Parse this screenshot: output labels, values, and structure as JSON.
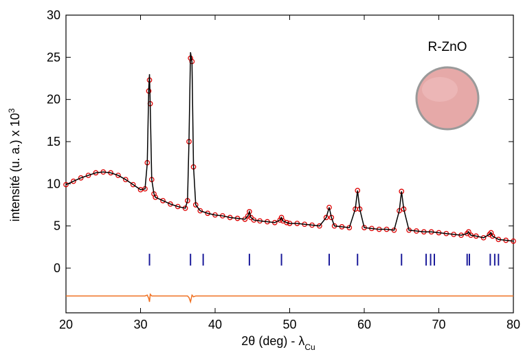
{
  "chart_data": {
    "type": "xrd",
    "x_label": "2θ (deg) - λ",
    "x_label_sub": "Cu",
    "y_label": "intensité (u. a.) x 10",
    "y_label_sup": "3",
    "annotation": "R-ZnO",
    "xlim": [
      20,
      80
    ],
    "ylim": [
      -5.3,
      30
    ],
    "xticks": [
      20,
      30,
      40,
      50,
      60,
      70,
      80
    ],
    "yticks": [
      0,
      5,
      10,
      15,
      20,
      25,
      30
    ],
    "x": [
      20,
      21,
      22,
      23,
      24,
      25,
      26,
      27,
      28,
      29,
      30,
      30.6,
      30.9,
      31.1,
      31.2,
      31.3,
      31.5,
      31.8,
      32,
      33,
      34,
      35,
      36,
      36.3,
      36.5,
      36.7,
      36.9,
      37.1,
      37.4,
      38,
      39,
      40,
      41,
      42,
      43,
      44,
      44.4,
      44.6,
      44.8,
      45.2,
      46,
      47,
      48,
      48.7,
      48.9,
      49.1,
      49.6,
      50,
      51,
      52,
      53,
      54,
      54.9,
      55.3,
      55.6,
      56,
      57,
      58,
      58.8,
      59.1,
      59.4,
      60,
      61,
      62,
      63,
      64,
      64.7,
      65.0,
      65.3,
      66,
      67,
      68,
      69,
      70,
      71,
      72,
      73,
      73.8,
      74.0,
      74.3,
      75,
      76,
      76.8,
      77.0,
      77.2,
      78,
      79,
      80
    ],
    "series": [
      {
        "style": "markers",
        "color": "#dd0000",
        "values": [
          9.9,
          10.3,
          10.7,
          11.0,
          11.3,
          11.4,
          11.3,
          11.0,
          10.5,
          9.9,
          9.3,
          9.4,
          12.5,
          21.0,
          22.3,
          19.5,
          10.5,
          8.8,
          8.4,
          8.0,
          7.6,
          7.3,
          7.1,
          8.0,
          15.0,
          24.9,
          24.5,
          12.0,
          7.5,
          6.8,
          6.5,
          6.3,
          6.2,
          6.0,
          5.9,
          5.8,
          6.2,
          6.7,
          6.0,
          5.7,
          5.6,
          5.5,
          5.4,
          5.7,
          6.0,
          5.6,
          5.4,
          5.3,
          5.3,
          5.2,
          5.1,
          5.0,
          6.0,
          7.2,
          6.0,
          5.0,
          4.9,
          4.8,
          7.0,
          9.2,
          7.0,
          4.8,
          4.7,
          4.6,
          4.6,
          4.5,
          6.8,
          9.1,
          7.0,
          4.5,
          4.4,
          4.3,
          4.3,
          4.2,
          4.1,
          4.0,
          3.9,
          4.1,
          4.3,
          3.9,
          3.8,
          3.6,
          4.0,
          4.2,
          3.8,
          3.4,
          3.3,
          3.2
        ]
      },
      {
        "style": "line",
        "color": "#000000",
        "values": [
          9.9,
          10.3,
          10.7,
          11.0,
          11.3,
          11.4,
          11.3,
          11.0,
          10.5,
          9.9,
          9.3,
          9.4,
          12.4,
          21.3,
          23.0,
          19.3,
          10.5,
          8.8,
          8.4,
          8.0,
          7.6,
          7.3,
          7.1,
          8.0,
          15.2,
          25.6,
          24.4,
          12.1,
          7.5,
          6.8,
          6.5,
          6.3,
          6.2,
          6.0,
          5.9,
          5.8,
          6.2,
          6.7,
          6.0,
          5.7,
          5.6,
          5.5,
          5.4,
          5.7,
          6.0,
          5.6,
          5.4,
          5.3,
          5.3,
          5.2,
          5.1,
          5.0,
          6.0,
          7.2,
          6.0,
          5.0,
          4.9,
          4.8,
          7.0,
          9.2,
          7.0,
          4.8,
          4.7,
          4.6,
          4.6,
          4.5,
          6.8,
          9.1,
          7.0,
          4.5,
          4.4,
          4.3,
          4.3,
          4.2,
          4.1,
          4.0,
          3.9,
          4.1,
          4.3,
          3.9,
          3.8,
          3.6,
          4.0,
          4.2,
          3.8,
          3.4,
          3.3,
          3.2
        ]
      },
      {
        "style": "line",
        "color": "#f07020",
        "values": [
          -3.3,
          -3.3,
          -3.3,
          -3.3,
          -3.3,
          -3.3,
          -3.3,
          -3.3,
          -3.3,
          -3.3,
          -3.3,
          -3.3,
          -3.2,
          -3.6,
          -4.0,
          -3.1,
          -3.3,
          -3.3,
          -3.3,
          -3.3,
          -3.3,
          -3.3,
          -3.3,
          -3.3,
          -3.5,
          -4.0,
          -3.2,
          -3.4,
          -3.3,
          -3.3,
          -3.3,
          -3.3,
          -3.3,
          -3.3,
          -3.3,
          -3.3,
          -3.3,
          -3.3,
          -3.3,
          -3.3,
          -3.3,
          -3.3,
          -3.3,
          -3.3,
          -3.3,
          -3.3,
          -3.3,
          -3.3,
          -3.3,
          -3.3,
          -3.3,
          -3.3,
          -3.3,
          -3.3,
          -3.3,
          -3.3,
          -3.3,
          -3.3,
          -3.3,
          -3.3,
          -3.3,
          -3.3,
          -3.3,
          -3.3,
          -3.3,
          -3.3,
          -3.3,
          -3.3,
          -3.3,
          -3.3,
          -3.3,
          -3.3,
          -3.3,
          -3.3,
          -3.3,
          -3.3,
          -3.3,
          -3.3,
          -3.3,
          -3.3,
          -3.3,
          -3.3,
          -3.3,
          -3.3,
          -3.3,
          -3.3,
          -3.3,
          -3.3
        ]
      }
    ],
    "bragg_color": "#1a1a9a",
    "bragg_positions": [
      31.2,
      36.7,
      38.4,
      44.6,
      48.9,
      55.3,
      59.1,
      65.0,
      68.3,
      68.9,
      69.4,
      73.8,
      74.1,
      76.9,
      77.5,
      78.0
    ]
  }
}
